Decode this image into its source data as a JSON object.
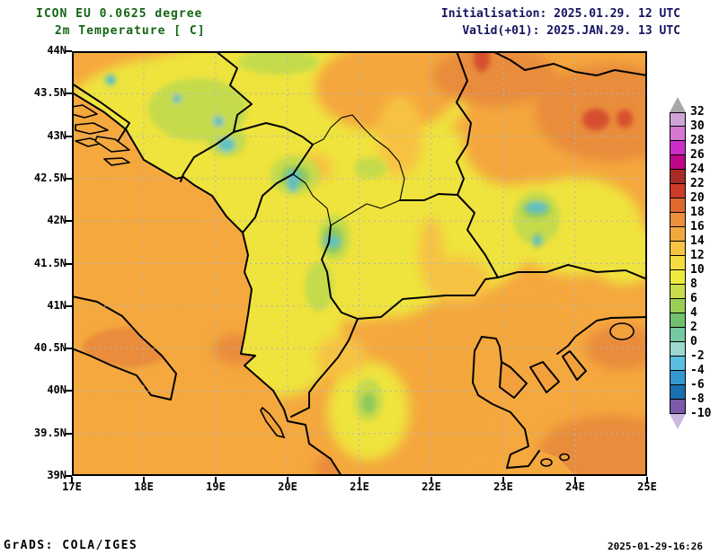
{
  "header": {
    "model_line": "ICON EU 0.0625 degree",
    "variable_line": " 2m Temperature [ C]",
    "init_line": "Initialisation: 2025.01.29. 12 UTC",
    "valid_line": "Valid(+01): 2025.JAN.29. 13 UTC",
    "title_color": "#146414",
    "time_color": "#14145f"
  },
  "map": {
    "lon_ticks": [
      "17E",
      "18E",
      "19E",
      "20E",
      "21E",
      "22E",
      "23E",
      "24E",
      "25E"
    ],
    "lat_ticks": [
      "44N",
      "43.5N",
      "43N",
      "42.5N",
      "42N",
      "41.5N",
      "41N",
      "40.5N",
      "40N",
      "39.5N",
      "39N"
    ],
    "lon_range_deg": [
      17,
      25
    ],
    "lat_range_deg": [
      39,
      44
    ],
    "grid_color": "#aab4c8"
  },
  "colorbar": {
    "title_units": "C",
    "labels": [
      "32",
      "30",
      "28",
      "26",
      "24",
      "22",
      "20",
      "18",
      "16",
      "14",
      "12",
      "10",
      "8",
      "6",
      "4",
      "2",
      "0",
      "-2",
      "-4",
      "-6",
      "-8",
      "-10"
    ],
    "segment_colors": [
      "#cfa3da",
      "#d678d2",
      "#cc2ec8",
      "#bd0689",
      "#a72c25",
      "#ce3b28",
      "#e0682f",
      "#ec8f3a",
      "#f3a83f",
      "#f7c343",
      "#f4dc40",
      "#efe93e",
      "#c8dc4b",
      "#9acf55",
      "#6fc06f",
      "#74c8a2",
      "#9bd8d0",
      "#58bfdf",
      "#3498ce",
      "#1c6fae",
      "#7b5ba8"
    ],
    "over_color": "#a8a8a8",
    "under_color": "#cbb8e2"
  },
  "footer": {
    "left": "GrADS: COLA/IGES",
    "right": "2025-01-29-16:26"
  }
}
